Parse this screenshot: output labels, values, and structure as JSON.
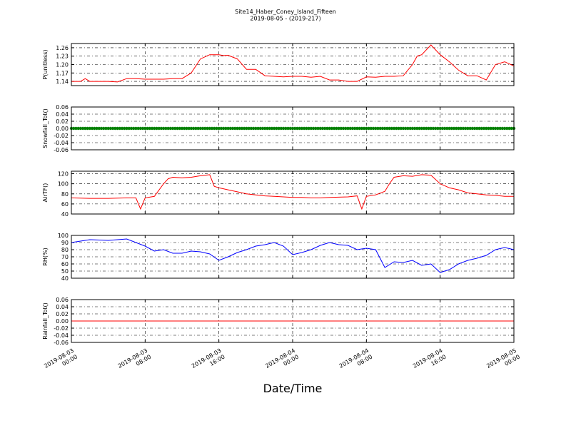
{
  "title": "Site14_Haber_Coney_Island_Fifteen",
  "subtitle": "2019-08-05 - (2019-217)",
  "xlabel": "Date/Time",
  "x_ticks": [
    {
      "l1": "2019-08-03",
      "l2": "00:00"
    },
    {
      "l1": "2019-08-03",
      "l2": "08:00"
    },
    {
      "l1": "2019-08-03",
      "l2": "16:00"
    },
    {
      "l1": "2019-08-04",
      "l2": "00:00"
    },
    {
      "l1": "2019-08-04",
      "l2": "08:00"
    },
    {
      "l1": "2019-08-04",
      "l2": "16:00"
    },
    {
      "l1": "2019-08-05",
      "l2": "00:00"
    }
  ],
  "chart_data": [
    {
      "type": "line",
      "ylabel": "P(unitless)",
      "ylim": [
        1.125,
        1.275
      ],
      "yticks": [
        1.14,
        1.17,
        1.2,
        1.23,
        1.26
      ],
      "tick_labels": [
        "1.14",
        "1.17",
        "1.20",
        "1.23",
        "1.26"
      ],
      "grid": true,
      "color": "#ff0000",
      "series": [
        {
          "x": [
            0,
            1,
            1.5,
            2,
            3,
            4,
            5,
            6,
            7,
            8,
            9,
            10,
            11,
            12,
            13,
            14,
            15,
            16,
            16.5,
            17,
            18,
            19,
            20,
            21,
            22,
            23,
            24,
            25,
            26,
            27,
            28,
            29,
            30,
            31,
            32,
            33,
            34,
            35,
            36,
            37,
            37.5,
            38,
            39,
            40,
            41,
            42,
            43,
            44,
            45,
            46,
            47,
            48
          ],
          "values": [
            1.14,
            1.14,
            1.15,
            1.14,
            1.14,
            1.14,
            1.138,
            1.15,
            1.15,
            1.148,
            1.148,
            1.148,
            1.15,
            1.15,
            1.17,
            1.22,
            1.235,
            1.235,
            1.232,
            1.233,
            1.22,
            1.183,
            1.183,
            1.16,
            1.158,
            1.156,
            1.158,
            1.158,
            1.155,
            1.158,
            1.145,
            1.145,
            1.14,
            1.14,
            1.156,
            1.155,
            1.158,
            1.158,
            1.16,
            1.2,
            1.23,
            1.235,
            1.27,
            1.235,
            1.21,
            1.18,
            1.16,
            1.16,
            1.145,
            1.2,
            1.21,
            1.195
          ]
        }
      ]
    },
    {
      "type": "scatter",
      "ylabel": "Snowfall_Tot()",
      "ylim": [
        -0.06,
        0.06
      ],
      "yticks": [
        -0.06,
        -0.04,
        -0.02,
        0.0,
        0.02,
        0.04,
        0.06
      ],
      "tick_labels": [
        "-0.06",
        "-0.04",
        "-0.02",
        "0.00",
        "0.02",
        "0.04",
        "0.06"
      ],
      "grid": true,
      "color": "#008000",
      "series": [
        {
          "x": [
            0,
            48
          ],
          "values": [
            0.0,
            0.0
          ],
          "note_constant": "all points 0.00"
        }
      ]
    },
    {
      "type": "line",
      "ylabel": "AirTF()",
      "ylim": [
        40,
        125
      ],
      "yticks": [
        40,
        60,
        80,
        100,
        120
      ],
      "tick_labels": [
        "40",
        "60",
        "80",
        "100",
        "120"
      ],
      "grid": true,
      "color": "#ff0000",
      "series": [
        {
          "x": [
            0,
            2,
            4,
            6,
            7,
            7.5,
            8,
            9,
            10,
            10.5,
            11,
            12,
            13,
            14,
            15,
            15.5,
            16,
            17,
            18,
            19,
            20,
            21,
            22,
            23,
            24,
            25,
            26,
            27,
            28,
            30,
            31,
            31.5,
            32,
            33,
            34,
            34.5,
            35,
            36,
            37,
            38,
            39,
            40,
            41,
            42,
            43,
            44,
            45,
            46,
            47,
            48
          ],
          "values": [
            72,
            71,
            71,
            72,
            72,
            50,
            72,
            75,
            100,
            110,
            113,
            112,
            113,
            116,
            118,
            95,
            92,
            88,
            84,
            80,
            78,
            76,
            75,
            74,
            73,
            73,
            72,
            72,
            73,
            74,
            76,
            50,
            75,
            78,
            85,
            100,
            113,
            116,
            115,
            118,
            117,
            100,
            92,
            88,
            82,
            80,
            78,
            77,
            75,
            75
          ]
        }
      ]
    },
    {
      "type": "line",
      "ylabel": "RH(%)",
      "ylim": [
        40,
        100
      ],
      "yticks": [
        40,
        50,
        60,
        70,
        80,
        90,
        100
      ],
      "tick_labels": [
        "40",
        "50",
        "60",
        "70",
        "80",
        "90",
        "100"
      ],
      "grid": true,
      "color": "#0000ff",
      "series": [
        {
          "x": [
            0,
            2,
            4,
            6,
            7,
            8,
            9,
            10,
            11,
            12,
            13,
            14,
            15,
            16,
            17,
            18,
            19,
            20,
            21,
            22,
            23,
            24,
            25,
            26,
            27,
            28,
            29,
            30,
            31,
            32,
            33,
            34,
            35,
            36,
            37,
            38,
            39,
            40,
            41,
            42,
            43,
            44,
            45,
            46,
            47,
            48
          ],
          "values": [
            90,
            94,
            93,
            95,
            90,
            85,
            78,
            80,
            75,
            75,
            78,
            77,
            74,
            65,
            70,
            76,
            80,
            85,
            87,
            90,
            85,
            73,
            76,
            80,
            86,
            90,
            87,
            86,
            80,
            82,
            80,
            55,
            63,
            62,
            65,
            58,
            60,
            48,
            52,
            60,
            65,
            68,
            72,
            80,
            83,
            80
          ]
        }
      ]
    },
    {
      "type": "line",
      "ylabel": "Rainfall_Tot()",
      "ylim": [
        -0.06,
        0.06
      ],
      "yticks": [
        -0.06,
        -0.04,
        -0.02,
        0.0,
        0.02,
        0.04,
        0.06
      ],
      "tick_labels": [
        "-0.06",
        "-0.04",
        "-0.02",
        "0.00",
        "0.02",
        "0.04",
        "0.06"
      ],
      "grid": true,
      "color": "#ff0000",
      "series": [
        {
          "x": [
            0,
            48
          ],
          "values": [
            0.0,
            0.0
          ]
        }
      ]
    }
  ]
}
